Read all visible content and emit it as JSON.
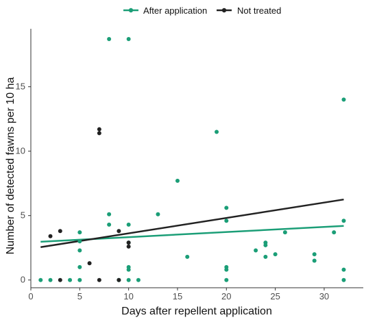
{
  "chart_data": {
    "type": "scatter",
    "xlabel": "Days after repellent application",
    "ylabel": "Number of detected fawns per 10 ha",
    "xlim": [
      0,
      34
    ],
    "ylim": [
      -0.6,
      19.5
    ],
    "x_ticks": [
      0,
      5,
      10,
      15,
      20,
      25,
      30
    ],
    "y_ticks": [
      0,
      5,
      10,
      15
    ],
    "grid": false,
    "legend_position": "top",
    "series": [
      {
        "name": "After application",
        "color": "#1b9e77",
        "points": [
          [
            1,
            0
          ],
          [
            2,
            0
          ],
          [
            4,
            0
          ],
          [
            5,
            0
          ],
          [
            5,
            1.0
          ],
          [
            5,
            2.3
          ],
          [
            5,
            3.0
          ],
          [
            5,
            3.7
          ],
          [
            8,
            4.3
          ],
          [
            8,
            5.1
          ],
          [
            8,
            18.7
          ],
          [
            9,
            0
          ],
          [
            10,
            0
          ],
          [
            10,
            0.8
          ],
          [
            10,
            1.0
          ],
          [
            10,
            2.9
          ],
          [
            10,
            4.3
          ],
          [
            10,
            18.7
          ],
          [
            11,
            0
          ],
          [
            13,
            5.1
          ],
          [
            15,
            7.7
          ],
          [
            16,
            1.8
          ],
          [
            19,
            11.5
          ],
          [
            20,
            0
          ],
          [
            20,
            0.8
          ],
          [
            20,
            1.0
          ],
          [
            20,
            4.6
          ],
          [
            20,
            5.6
          ],
          [
            23,
            2.3
          ],
          [
            24,
            1.8
          ],
          [
            24,
            2.7
          ],
          [
            24,
            2.9
          ],
          [
            25,
            2.0
          ],
          [
            26,
            3.7
          ],
          [
            29,
            1.5
          ],
          [
            29,
            2.0
          ],
          [
            31,
            3.7
          ],
          [
            32,
            0
          ],
          [
            32,
            0.8
          ],
          [
            32,
            4.6
          ],
          [
            32,
            14.0
          ]
        ],
        "trend": [
          [
            1,
            2.97
          ],
          [
            32,
            4.2
          ]
        ]
      },
      {
        "name": "Not treated",
        "color": "#222222",
        "points": [
          [
            2,
            3.4
          ],
          [
            3,
            0
          ],
          [
            3,
            3.8
          ],
          [
            6,
            1.3
          ],
          [
            7,
            0
          ],
          [
            7,
            11.4
          ],
          [
            7,
            11.7
          ],
          [
            9,
            0
          ],
          [
            9,
            3.8
          ],
          [
            10,
            2.6
          ],
          [
            10,
            2.9
          ]
        ],
        "trend": [
          [
            1,
            2.55
          ],
          [
            32,
            6.25
          ]
        ]
      }
    ]
  }
}
